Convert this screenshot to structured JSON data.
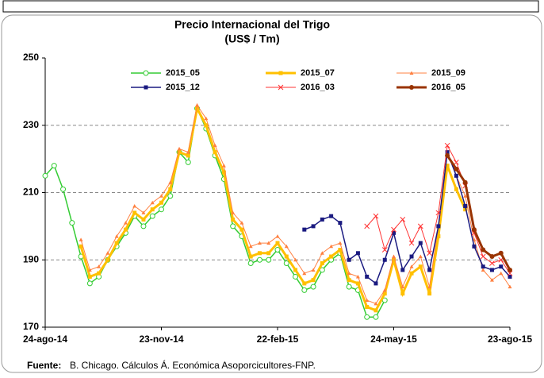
{
  "chart_data": {
    "type": "line",
    "title": "Precio Internacional del Trigo",
    "subtitle": "(US$ / Tm)",
    "source_label": "Fuente:",
    "source": "B. Chicago. Cálculos Á. Económica Asoporcicultores-FNP.",
    "categories": [
      "24-ago-14",
      null,
      null,
      null,
      null,
      null,
      null,
      null,
      null,
      null,
      null,
      null,
      null,
      "23-nov-14",
      null,
      null,
      null,
      null,
      null,
      null,
      null,
      null,
      null,
      null,
      null,
      null,
      "22-feb-15",
      null,
      null,
      null,
      null,
      null,
      null,
      null,
      null,
      null,
      null,
      null,
      null,
      "24-may-15",
      null,
      null,
      null,
      null,
      null,
      null,
      null,
      null,
      null,
      null,
      null,
      null,
      "23-ago-15"
    ],
    "ylim": [
      170,
      250
    ],
    "yticks": [
      170,
      190,
      210,
      230,
      250
    ],
    "grid": true,
    "series": [
      {
        "name": "2015_05",
        "color": "#33cc33",
        "marker": "circle-open",
        "width": 1.5,
        "values": [
          215,
          218,
          211,
          201,
          191,
          183,
          185,
          190,
          194,
          198,
          203,
          200,
          203,
          205,
          209,
          222,
          219,
          235,
          229,
          221,
          214,
          200,
          197,
          189,
          190,
          190,
          193,
          189,
          185,
          181,
          182,
          187,
          190,
          192,
          182,
          181,
          173,
          173,
          178,
          null,
          null,
          null,
          null,
          null,
          null,
          null,
          null,
          null,
          null,
          null,
          null,
          null,
          null
        ]
      },
      {
        "name": "2015_07",
        "color": "#ffc000",
        "marker": "square",
        "width": 3,
        "values": [
          null,
          null,
          null,
          null,
          194,
          185,
          186,
          190,
          195,
          199,
          204,
          202,
          205,
          207,
          211,
          222,
          221,
          235,
          230,
          222,
          216,
          202,
          199,
          191,
          192,
          192,
          195,
          191,
          187,
          183,
          184,
          189,
          191,
          193,
          184,
          183,
          176,
          175,
          180,
          190,
          180,
          186,
          188,
          180,
          197,
          218,
          211,
          205,
          null,
          null,
          null,
          null,
          null
        ]
      },
      {
        "name": "2015_09",
        "color": "#ff8040",
        "marker": "triangle",
        "width": 1,
        "values": [
          null,
          null,
          null,
          null,
          196,
          187,
          188,
          192,
          197,
          201,
          206,
          204,
          207,
          209,
          213,
          223,
          222,
          236,
          232,
          224,
          218,
          204,
          201,
          194,
          195,
          195,
          197,
          194,
          190,
          186,
          187,
          192,
          194,
          195,
          186,
          185,
          178,
          177,
          181,
          191,
          182,
          188,
          191,
          182,
          200,
          222,
          215,
          209,
          196,
          187,
          184,
          186,
          182
        ]
      },
      {
        "name": "2015_12",
        "color": "#1a1a80",
        "marker": "square",
        "width": 1.5,
        "values": [
          null,
          null,
          null,
          null,
          null,
          null,
          null,
          null,
          null,
          null,
          null,
          null,
          null,
          null,
          null,
          null,
          null,
          null,
          null,
          null,
          null,
          null,
          null,
          null,
          null,
          null,
          null,
          null,
          null,
          199,
          200,
          202,
          203,
          201,
          190,
          192,
          185,
          183,
          190,
          198,
          187,
          191,
          195,
          187,
          200,
          222,
          215,
          206,
          194,
          188,
          187,
          188,
          185
        ]
      },
      {
        "name": "2016_03",
        "color": "#ff3333",
        "marker": "x",
        "width": 1,
        "values": [
          null,
          null,
          null,
          null,
          null,
          null,
          null,
          null,
          null,
          null,
          null,
          null,
          null,
          null,
          null,
          null,
          null,
          null,
          null,
          null,
          null,
          null,
          null,
          null,
          null,
          null,
          null,
          null,
          null,
          null,
          null,
          null,
          null,
          null,
          null,
          null,
          200,
          203,
          193,
          199,
          202,
          195,
          200,
          192,
          204,
          224,
          219,
          212,
          198,
          191,
          189,
          190,
          186
        ]
      },
      {
        "name": "2016_05",
        "color": "#993300",
        "marker": "circle",
        "width": 3,
        "values": [
          null,
          null,
          null,
          null,
          null,
          null,
          null,
          null,
          null,
          null,
          null,
          null,
          null,
          null,
          null,
          null,
          null,
          null,
          null,
          null,
          null,
          null,
          null,
          null,
          null,
          null,
          null,
          null,
          null,
          null,
          null,
          null,
          null,
          null,
          null,
          null,
          null,
          null,
          null,
          null,
          null,
          null,
          null,
          null,
          null,
          221,
          217,
          213,
          199,
          193,
          191,
          192,
          187
        ]
      }
    ]
  }
}
